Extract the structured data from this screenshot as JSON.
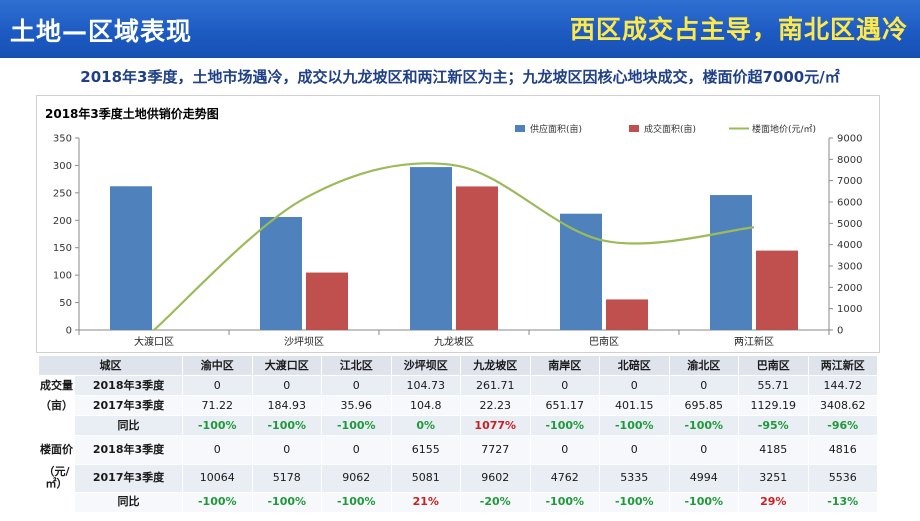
{
  "header": {
    "title": "土地—区域表现",
    "tagline": "西区成交占主导，南北区遇冷"
  },
  "subtitle": "2018年3季度，土地市场遇冷，成交以九龙坡区和两江新区为主；九龙坡区因核心地块成交，楼面价超7000元/㎡",
  "chart_data": {
    "type": "bar",
    "title": "2018年3季度土地供销价走势图",
    "categories": [
      "大渡口区",
      "沙坪坝区",
      "九龙坡区",
      "巴南区",
      "两江新区"
    ],
    "series": [
      {
        "name": "供应面积(亩)",
        "axis": "left",
        "values": [
          262,
          206,
          297,
          212,
          246
        ]
      },
      {
        "name": "成交面积(亩)",
        "axis": "left",
        "values": [
          0,
          104.73,
          261.71,
          55.71,
          144.72
        ]
      },
      {
        "name": "楼面地价(元/㎡)",
        "axis": "right",
        "kind": "line",
        "values": [
          0,
          6155,
          7727,
          4185,
          4816
        ]
      }
    ],
    "y_left": {
      "min": 0,
      "max": 350,
      "step": 50
    },
    "y_right": {
      "min": 0,
      "max": 9000,
      "step": 1000
    },
    "legend_position": "top-right",
    "colors": {
      "supply": "#4f81bd",
      "deal": "#c0504d",
      "price": "#9bbb59"
    }
  },
  "table": {
    "header": [
      "城区",
      "渝中区",
      "大渡口区",
      "江北区",
      "沙坪坝区",
      "九龙坡区",
      "南岸区",
      "北碚区",
      "渝北区",
      "巴南区",
      "两江新区"
    ],
    "deal_group": "成交量",
    "deal_unit": "（亩）",
    "price_group": "楼面价",
    "price_unit": "（元/㎡）",
    "yoy_label": "同比",
    "q3_2018_label": "2018年3季度",
    "q3_2017_label": "2017年3季度",
    "price_q3_2018_label": "2018年3季度",
    "price_q3_2017_label": "2017年3季度",
    "deal_2018": [
      "0",
      "0",
      "0",
      "104.73",
      "261.71",
      "0",
      "0",
      "0",
      "55.71",
      "144.72"
    ],
    "deal_2017": [
      "71.22",
      "184.93",
      "35.96",
      "104.8",
      "22.23",
      "651.17",
      "401.15",
      "695.85",
      "1129.19",
      "3408.62"
    ],
    "deal_yoy": [
      "-100%",
      "-100%",
      "-100%",
      "0%",
      "1077%",
      "-100%",
      "-100%",
      "-100%",
      "-95%",
      "-96%"
    ],
    "price_2018": [
      "0",
      "0",
      "0",
      "6155",
      "7727",
      "0",
      "0",
      "0",
      "4185",
      "4816"
    ],
    "price_2017": [
      "10064",
      "5178",
      "9062",
      "5081",
      "9602",
      "4762",
      "5335",
      "4994",
      "3251",
      "5536"
    ],
    "price_yoy": [
      "-100%",
      "-100%",
      "-100%",
      "21%",
      "-20%",
      "-100%",
      "-100%",
      "-100%",
      "29%",
      "-13%"
    ]
  }
}
